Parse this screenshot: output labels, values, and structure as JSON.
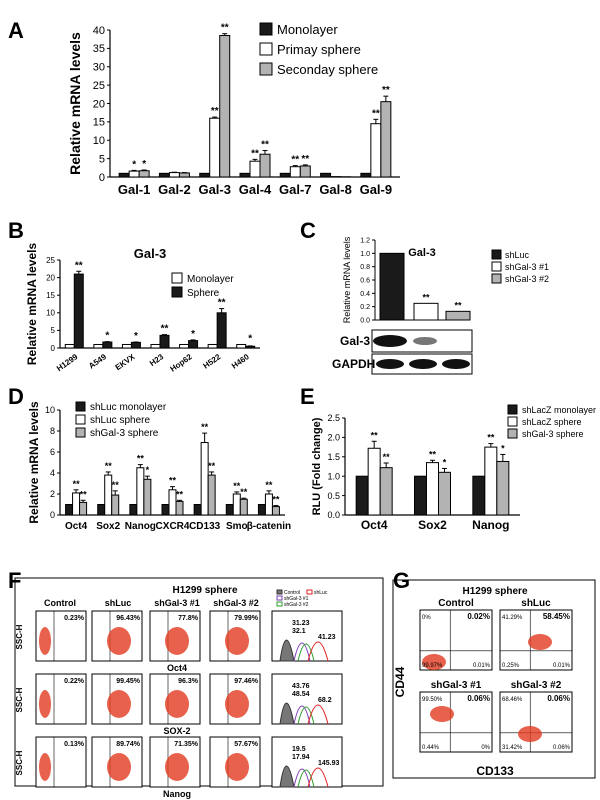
{
  "panel_labels": [
    "A",
    "B",
    "C",
    "D",
    "E",
    "F",
    "G"
  ],
  "chart_data": [
    {
      "panel": "A",
      "type": "bar",
      "ylabel": "Relative mRNA levels",
      "ylim": [
        0,
        40
      ],
      "yticks": [
        "0",
        "5",
        "10",
        "15",
        "20",
        "25",
        "30",
        "35",
        "40"
      ],
      "categories": [
        "Gal-1",
        "Gal-2",
        "Gal-3",
        "Gal-4",
        "Gal-7",
        "Gal-8",
        "Gal-9"
      ],
      "legend_position": "top-right",
      "series": [
        {
          "name": "Monolayer",
          "fill": "#1a1a1a",
          "values": [
            1,
            1,
            1,
            1,
            1,
            1,
            1
          ],
          "errors": [
            0,
            0,
            0,
            0,
            0,
            0,
            0
          ]
        },
        {
          "name": "Primay sphere",
          "fill": "#ffffff",
          "values": [
            1.6,
            1.2,
            16,
            4.3,
            2.8,
            0.1,
            14.5
          ],
          "errors": [
            0.2,
            0.1,
            0.3,
            0.5,
            0.3,
            0,
            1.2
          ]
        },
        {
          "name": "Seconday sphere",
          "fill": "#b3b3b3",
          "values": [
            1.7,
            1.1,
            38.5,
            6.2,
            3.0,
            0.05,
            20.5
          ],
          "errors": [
            0.2,
            0.1,
            0.5,
            1.0,
            0.3,
            0,
            1.5
          ]
        }
      ],
      "significance": [
        {
          "category": 0,
          "labels": [
            "*",
            "*"
          ]
        },
        {
          "category": 2,
          "labels": [
            "**",
            "**"
          ]
        },
        {
          "category": 3,
          "labels": [
            "**",
            "**"
          ]
        },
        {
          "category": 4,
          "labels": [
            "**",
            "**"
          ]
        },
        {
          "category": 6,
          "labels": [
            "**",
            "**"
          ]
        }
      ]
    },
    {
      "panel": "B",
      "type": "bar",
      "title": "Gal-3",
      "ylabel": "Relative mRNA levels",
      "ylim": [
        0,
        25
      ],
      "yticks": [
        "0",
        "5",
        "10",
        "15",
        "20",
        "25"
      ],
      "categories": [
        "H1299",
        "A549",
        "EKVX",
        "H23",
        "Hop62",
        "H522",
        "H460"
      ],
      "legend_position": "top-right",
      "series": [
        {
          "name": "Monolayer",
          "fill": "#ffffff",
          "values": [
            1,
            1,
            1,
            1,
            1,
            1,
            1
          ],
          "errors": [
            0,
            0,
            0,
            0,
            0,
            0,
            0
          ]
        },
        {
          "name": "Sphere",
          "fill": "#1a1a1a",
          "values": [
            21,
            1.7,
            1.6,
            3.6,
            2.1,
            10,
            0.5
          ],
          "errors": [
            0.8,
            0.1,
            0.1,
            0.2,
            0.2,
            1.2,
            0.1
          ]
        }
      ],
      "significance": [
        {
          "category": 0,
          "label": "**"
        },
        {
          "category": 1,
          "label": "*"
        },
        {
          "category": 2,
          "label": "*"
        },
        {
          "category": 3,
          "label": "**"
        },
        {
          "category": 4,
          "label": "*"
        },
        {
          "category": 5,
          "label": "**"
        },
        {
          "category": 6,
          "label": "*"
        }
      ]
    },
    {
      "panel": "C",
      "type": "bar",
      "title": "Gal-3",
      "ylabel": "Relative mRNA levels",
      "ylim": [
        0,
        1.2
      ],
      "yticks": [
        "0.0",
        "0.2",
        "0.4",
        "0.6",
        "0.8",
        "1.0",
        "1.2"
      ],
      "legend_position": "top-right",
      "series": [
        {
          "name": "shLuc",
          "fill": "#1a1a1a",
          "value": 1.0
        },
        {
          "name": "shGal-3 #1",
          "fill": "#ffffff",
          "value": 0.25
        },
        {
          "name": "shGal-3 #2",
          "fill": "#b3b3b3",
          "value": 0.13
        }
      ],
      "significance": [
        "",
        "**",
        "**"
      ],
      "blot_labels": [
        "Gal-3",
        "GAPDH"
      ]
    },
    {
      "panel": "D",
      "type": "bar",
      "ylabel": "Relative mRNA levels",
      "ylim": [
        0,
        10
      ],
      "yticks": [
        "0",
        "2",
        "4",
        "6",
        "8",
        "10"
      ],
      "categories": [
        "Oct4",
        "Sox2",
        "Nanog",
        "CXCR4",
        "CD133",
        "Smo",
        "β-catenin"
      ],
      "legend_position": "top-left",
      "series": [
        {
          "name": "shLuc monolayer",
          "fill": "#1a1a1a",
          "values": [
            1,
            1,
            1,
            1,
            1,
            1,
            1
          ],
          "errors": [
            0,
            0,
            0,
            0,
            0,
            0,
            0
          ]
        },
        {
          "name": "shLuc sphere",
          "fill": "#ffffff",
          "values": [
            2.1,
            3.8,
            4.5,
            2.4,
            6.9,
            2.0,
            2.0
          ],
          "errors": [
            0.3,
            0.3,
            0.3,
            0.3,
            0.9,
            0.2,
            0.3
          ]
        },
        {
          "name": "shGal-3 sphere",
          "fill": "#b3b3b3",
          "values": [
            1.2,
            1.9,
            3.4,
            1.3,
            3.8,
            1.5,
            0.8
          ],
          "errors": [
            0.2,
            0.4,
            0.3,
            0.1,
            0.3,
            0.1,
            0.1
          ]
        }
      ],
      "significance": [
        {
          "category": 0,
          "labels": [
            "**",
            "**"
          ]
        },
        {
          "category": 1,
          "labels": [
            "**",
            "**"
          ]
        },
        {
          "category": 2,
          "labels": [
            "**",
            "*"
          ]
        },
        {
          "category": 3,
          "labels": [
            "**",
            "**"
          ]
        },
        {
          "category": 4,
          "labels": [
            "**",
            "**"
          ]
        },
        {
          "category": 5,
          "labels": [
            "**",
            "**"
          ]
        },
        {
          "category": 6,
          "labels": [
            "**",
            "**"
          ]
        }
      ]
    },
    {
      "panel": "E",
      "type": "bar",
      "ylabel": "RLU (Fold change)",
      "ylim": [
        0,
        2.5
      ],
      "yticks": [
        "0.0",
        "0.5",
        "1.0",
        "1.5",
        "2.0",
        "2.5"
      ],
      "categories": [
        "Oct4",
        "Sox2",
        "Nanog"
      ],
      "legend_position": "top-right",
      "series": [
        {
          "name": "shLacZ monolayer",
          "fill": "#1a1a1a",
          "values": [
            1,
            1,
            1
          ],
          "errors": [
            0,
            0,
            0
          ]
        },
        {
          "name": "shLacZ sphere",
          "fill": "#ffffff",
          "values": [
            1.72,
            1.35,
            1.75
          ],
          "errors": [
            0.18,
            0.06,
            0.09
          ]
        },
        {
          "name": "shGal-3 sphere",
          "fill": "#b3b3b3",
          "values": [
            1.22,
            1.1,
            1.38
          ],
          "errors": [
            0.12,
            0.1,
            0.18
          ]
        }
      ],
      "significance": [
        {
          "category": 0,
          "labels": [
            "**",
            "**"
          ]
        },
        {
          "category": 1,
          "labels": [
            "**",
            "*"
          ]
        },
        {
          "category": 2,
          "labels": [
            "**",
            "*"
          ]
        }
      ]
    }
  ],
  "panel_f": {
    "title": "H1299 sphere",
    "columns": [
      "Control",
      "shLuc",
      "shGal-3 #1",
      "shGal-3 #2"
    ],
    "ylabel": "SSC-H",
    "rows": [
      {
        "marker": "Oct4",
        "values": [
          "0.23%",
          "96.43%",
          "77.8%",
          "79.99%"
        ],
        "hist_values": [
          "31.23",
          "32.1",
          "41.23"
        ],
        "hist_colors": [
          "#7a3db8",
          "#2e9c2e",
          "#e02020"
        ]
      },
      {
        "marker": "SOX-2",
        "values": [
          "0.22%",
          "99.45%",
          "96.3%",
          "97.46%"
        ],
        "hist_values": [
          "43.76",
          "48.54",
          "68.2"
        ],
        "hist_colors": [
          "#7a3db8",
          "#2e9c2e",
          "#e02020"
        ]
      },
      {
        "marker": "Nanog",
        "values": [
          "0.13%",
          "89.74%",
          "71.35%",
          "57.67%"
        ],
        "hist_values": [
          "19.5",
          "17.94",
          "145.93"
        ],
        "hist_colors": [
          "#7a3db8",
          "#2e9c2e",
          "#e02020"
        ]
      }
    ],
    "legend": [
      "Control",
      "shLuc",
      "shGal-3 #1",
      "shGal-3 #2"
    ]
  },
  "panel_g": {
    "title": "H1299 sphere",
    "ylabel": "CD44",
    "xlabel": "CD133",
    "plots": [
      {
        "name": "Control",
        "q": [
          "0%",
          "0.02%",
          "99.97%",
          "0.01%"
        ]
      },
      {
        "name": "shLuc",
        "q": [
          "41.29%",
          "58.45%",
          "0.25%",
          "0.01%"
        ]
      },
      {
        "name": "shGal-3 #1",
        "q": [
          "99.50%",
          "0.06%",
          "0.44%",
          "0%"
        ]
      },
      {
        "name": "shGal-3 #2",
        "q": [
          "68.46%",
          "0.06%",
          "31.42%",
          "0.06%"
        ]
      }
    ]
  }
}
